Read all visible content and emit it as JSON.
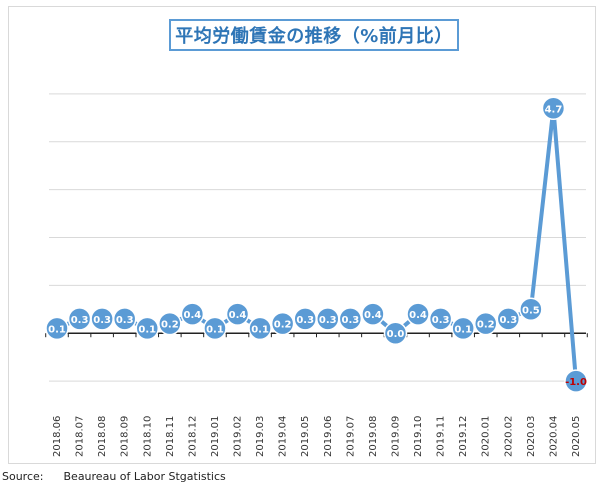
{
  "source": {
    "label": "Source:",
    "text": "Beaureau of Labor Stgatistics"
  },
  "colors": {
    "line": "#5b9bd5",
    "marker_fill": "#5b9bd5",
    "label_text": "#ffffff",
    "negative_label_text": "#c00000",
    "axis": "#222222",
    "grid": "#d9d9d9",
    "title_border": "#5b9bd5",
    "title_text": "#2e75b6"
  },
  "chart_data": {
    "type": "line",
    "title": "平均労働賃金の推移（%前月比）",
    "xlabel": "",
    "ylabel": "",
    "categories": [
      "2018.06",
      "2018.07",
      "2018.08",
      "2018.09",
      "2018.10",
      "2018.11",
      "2018.12",
      "2019.01",
      "2019.02",
      "2019.03",
      "2019.04",
      "2019.05",
      "2019.06",
      "2019.07",
      "2019.08",
      "2019.09",
      "2019.10",
      "2019.11",
      "2019.12",
      "2020.01",
      "2020.02",
      "2020.03",
      "2020.04",
      "2020.05"
    ],
    "series": [
      {
        "values": [
          0.1,
          0.3,
          0.3,
          0.3,
          0.1,
          0.2,
          0.4,
          0.1,
          0.4,
          0.1,
          0.2,
          0.3,
          0.3,
          0.3,
          0.4,
          0.0,
          0.4,
          0.3,
          0.1,
          0.2,
          0.3,
          0.5,
          4.7,
          -1.0
        ],
        "labels": [
          "0.1",
          "0.3",
          "0.3",
          "0.3",
          "0.1",
          "0.2",
          "0.4",
          "0.1",
          "0.4",
          "0.1",
          "0.2",
          "0.3",
          "0.3",
          "0.3",
          "0.4",
          "0.0",
          "0.4",
          "0.3",
          "0.1",
          "0.2",
          "0.3",
          "0.5",
          "4.7",
          "-1.0"
        ]
      }
    ],
    "ylim": [
      -1.5,
      5.5
    ],
    "grid": true,
    "legend": "none"
  }
}
